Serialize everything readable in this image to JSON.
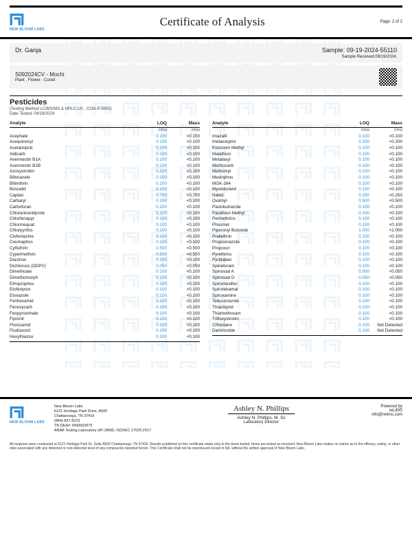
{
  "brand": {
    "name": "NEW BLOOM LABS",
    "accent": "#2a8fd6"
  },
  "header": {
    "title": "Certificate of Analysis",
    "page": "Page: 2 of 2"
  },
  "client": {
    "name": "Dr. Ganja"
  },
  "sample": {
    "id_label": "Sample:",
    "id": "09-19-2024-55110",
    "received": "Sample Received:09/19/2024;"
  },
  "product": {
    "code": "S092024CV - Mochi",
    "type": "Plant , Flower - Cured"
  },
  "section": {
    "title": "Pesticides",
    "method": "(Testing Method LC/MS/MS & HPLC-UV , CON-P-5000)",
    "date": "Date Tested: 09/19/2024"
  },
  "columns": {
    "c1": "Analyte",
    "c2": "LOQ",
    "c3": "Mass",
    "unit": "PPM"
  },
  "left": [
    [
      "Acephate",
      "0.100",
      "<0.100"
    ],
    [
      "Acequinocyl",
      "0.100",
      "<0.100"
    ],
    [
      "Acetamiprid",
      "0.100",
      "<0.100"
    ],
    [
      "Aldicarb",
      "0.100",
      "<0.100"
    ],
    [
      "Avermectin B1A",
      "0.100",
      "<0.100"
    ],
    [
      "Avermectin B1B",
      "0.100",
      "<0.100"
    ],
    [
      "Azoxystrobin",
      "0.100",
      "<0.100"
    ],
    [
      "Bifenazate",
      "0.100",
      "<0.100"
    ],
    [
      "Bifenthrin",
      "0.100",
      "<0.100"
    ],
    [
      "Boscalid",
      "0.100",
      "<0.100"
    ],
    [
      "Captan",
      "0.700",
      "<0.700"
    ],
    [
      "Carbaryl",
      "0.100",
      "<0.100"
    ],
    [
      "Carbofuran",
      "0.100",
      "<0.100"
    ],
    [
      "Chlorantraniliprole",
      "0.100",
      "<0.100"
    ],
    [
      "Chlorfenapyr",
      "0.100",
      "<0.100"
    ],
    [
      "Chlormequat",
      "0.100",
      "<0.100"
    ],
    [
      "Chlorpyrifos",
      "0.100",
      "<0.100"
    ],
    [
      "Clofentazine",
      "0.100",
      "<0.100"
    ],
    [
      "Coumaphos",
      "0.100",
      "<0.100"
    ],
    [
      "Cyfluthrin",
      "0.500",
      "<0.500"
    ],
    [
      "Cypermethrin",
      "0.500",
      "<0.500"
    ],
    [
      "Diazinon",
      "0.100",
      "<0.100"
    ],
    [
      "Dichlorvos (DDPV)",
      "0.050",
      "<0.050"
    ],
    [
      "Dimethoate",
      "0.100",
      "<0.100"
    ],
    [
      "Dimethomorph",
      "0.100",
      "<0.100"
    ],
    [
      "Ethoprophos",
      "0.100",
      "<0.100"
    ],
    [
      "Etofenprox",
      "0.100",
      "<0.100"
    ],
    [
      "Etoxazole",
      "0.100",
      "<0.100"
    ],
    [
      "Fenhexamid",
      "0.100",
      "<0.100"
    ],
    [
      "Fenoxycarb",
      "0.100",
      "<0.100"
    ],
    [
      "Fenpyroximate",
      "0.100",
      "<0.100"
    ],
    [
      "Fipronil",
      "0.100",
      "<0.100"
    ],
    [
      "Flonicamid",
      "0.100",
      "<0.100"
    ],
    [
      "Fludioxonil",
      "0.100",
      "<0.100"
    ],
    [
      "Hexythiazox",
      "0.100",
      "<0.100"
    ]
  ],
  "right": [
    [
      "Imazalil",
      "0.100",
      "<0.100"
    ],
    [
      "Imidacloprid",
      "0.200",
      "<0.200"
    ],
    [
      "Kresoxim Methyl",
      "0.100",
      "<0.100"
    ],
    [
      "Malathion",
      "0.100",
      "<0.100"
    ],
    [
      "Metalaxyl",
      "0.100",
      "<0.100"
    ],
    [
      "Methiocarb",
      "0.100",
      "<0.100"
    ],
    [
      "Methomyl",
      "0.100",
      "<0.100"
    ],
    [
      "Mevinphos",
      "0.100",
      "<0.100"
    ],
    [
      "MGK-264",
      "0.100",
      "<0.100"
    ],
    [
      "Myclobutanil",
      "0.100",
      "<0.100"
    ],
    [
      "Naled",
      "0.250",
      "<0.250"
    ],
    [
      "Oxamyl",
      "0.500",
      "<0.500"
    ],
    [
      "Paclobutrazole",
      "0.100",
      "<0.100"
    ],
    [
      "Parathion Methyl",
      "0.100",
      "<0.100"
    ],
    [
      "Permethrins",
      "0.100",
      "<0.100"
    ],
    [
      "Phosmet",
      "0.100",
      "<0.100"
    ],
    [
      "Piperonyl Butoxide",
      "1.000",
      "<1.000"
    ],
    [
      "Prallethrin",
      "0.100",
      "<0.100"
    ],
    [
      "Propiconazole",
      "0.100",
      "<0.100"
    ],
    [
      "Propoxur",
      "0.100",
      "<0.100"
    ],
    [
      "Pyrethrins",
      "0.100",
      "<0.100"
    ],
    [
      "Pyridaben",
      "0.100",
      "<0.100"
    ],
    [
      "Spinetoram",
      "0.100",
      "<0.100"
    ],
    [
      "Spinosad A",
      "0.050",
      "<0.050"
    ],
    [
      "Spinosad D",
      "0.050",
      "<0.050"
    ],
    [
      "Spiromesifen",
      "0.100",
      "<0.100"
    ],
    [
      "Spirotetramat",
      "0.100",
      "<0.100"
    ],
    [
      "Spiroxamine",
      "0.100",
      "<0.100"
    ],
    [
      "Tebuconazole",
      "0.100",
      "<0.100"
    ],
    [
      "Thiacloprid",
      "0.100",
      "<0.100"
    ],
    [
      "Thiamethoxam",
      "0.100",
      "<0.100"
    ],
    [
      "Trifloxystrobin",
      "0.100",
      "<0.100"
    ],
    [
      "Chlordane",
      "0.100",
      "Not Detected"
    ],
    [
      "Daminozide",
      "0.100",
      "Not Detected"
    ]
  ],
  "footer": {
    "addr": [
      "New Bloom Labs",
      "6121 Heritage Park Drive, A500",
      "Chattanooga, TN 37416",
      "(844) 837-8223",
      "TN DEA#: RN0563975",
      "ANAB Testing Laboratory (AT-2868): ISO/IEC 17025:2017"
    ],
    "sig": "Ashley N. Phillips",
    "sig_name": "Ashley N. Phillips, M. Sc",
    "sig_role": "Laboratory Director",
    "powered": "Powered by",
    "relims": "reLIMS",
    "email": "info@relims.com"
  },
  "disclaimer": "All analyses were conducted at 6121 Heritage Park Dr, Suite A500 Chattanooga, TN 37416. Results published on this certificate relate only to the items tested. Items are tested as received. New Bloom Labs makes no claims as to the efficacy, safety, or other risks associated with any detected or non-detected level of any compounds reported herein. This Certificate shall not be reproduced except in full, without the written approval of New Bloom Labs."
}
